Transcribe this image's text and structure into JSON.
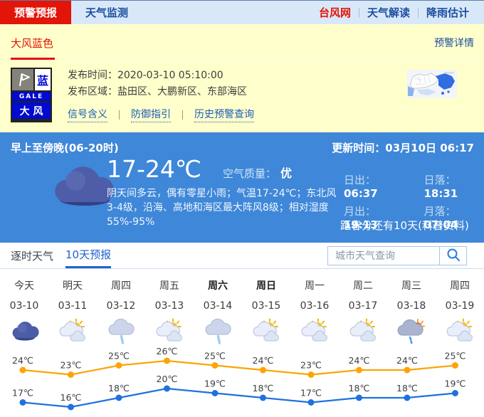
{
  "nav": {
    "tabs": [
      {
        "label": "预警预报",
        "active": true
      },
      {
        "label": "天气监测",
        "active": false
      }
    ],
    "links": [
      "台风网",
      "天气解读",
      "降雨估计"
    ]
  },
  "warning": {
    "title": "大风蓝色",
    "details_link": "预警详情",
    "icon": {
      "badge_char": "蓝",
      "gale_text": "GALE",
      "name": "大 风"
    },
    "publish_time_label": "发布时间：",
    "publish_time": "2020-03-10 05:10:00",
    "area_label": "发布区域：",
    "area": "盐田区、大鹏新区、东部海区",
    "links": [
      "信号含义",
      "防御指引",
      "历史预警查询"
    ]
  },
  "current": {
    "period": "早上至傍晚(06-20时)",
    "update_label": "更新时间：",
    "update_time": "03月10日 06:17",
    "temp_range": "17-24℃",
    "air_label": "空气质量：",
    "air_value": "优",
    "description": "阴天间多云，偶有零星小雨；气温17-24℃；东北风3-4级，沿海、高地和海区最大阵风8级；相对湿度55%-95%",
    "astro": [
      {
        "label": "日出：",
        "value": "06:37"
      },
      {
        "label": "日落：",
        "value": "18:31"
      },
      {
        "label": "月出：",
        "value": "19:13"
      },
      {
        "label": "月落：",
        "value": "07:04"
      }
    ],
    "note": "距春分还有10天(科普资料)"
  },
  "forecast": {
    "tabs": [
      {
        "label": "逐时天气",
        "active": false
      },
      {
        "label": "10天预报",
        "active": true
      }
    ],
    "search_placeholder": "城市天气查询",
    "days": [
      {
        "name": "今天",
        "date": "03-10",
        "icon": "overcast",
        "bold": false
      },
      {
        "name": "明天",
        "date": "03-11",
        "icon": "cloudy",
        "bold": false
      },
      {
        "name": "周四",
        "date": "03-12",
        "icon": "rain",
        "bold": false
      },
      {
        "name": "周五",
        "date": "03-13",
        "icon": "cloudy",
        "bold": false
      },
      {
        "name": "周六",
        "date": "03-14",
        "icon": "rain",
        "bold": true
      },
      {
        "name": "周日",
        "date": "03-15",
        "icon": "cloudy",
        "bold": true
      },
      {
        "name": "周一",
        "date": "03-16",
        "icon": "cloudy",
        "bold": false
      },
      {
        "name": "周二",
        "date": "03-17",
        "icon": "cloudy",
        "bold": false
      },
      {
        "name": "周三",
        "date": "03-18",
        "icon": "shower",
        "bold": false
      },
      {
        "name": "周四",
        "date": "03-19",
        "icon": "cloudy",
        "bold": false
      }
    ]
  },
  "chart_data": {
    "type": "line",
    "categories": [
      "03-10",
      "03-11",
      "03-12",
      "03-13",
      "03-14",
      "03-15",
      "03-16",
      "03-17",
      "03-18",
      "03-19"
    ],
    "series": [
      {
        "name": "high-temp",
        "color": "#fca404",
        "values": [
          24,
          23,
          25,
          26,
          25,
          24,
          23,
          24,
          24,
          25
        ]
      },
      {
        "name": "low-temp",
        "color": "#1f71dd",
        "values": [
          17,
          16,
          18,
          20,
          19,
          18,
          17,
          18,
          18,
          19
        ]
      }
    ],
    "unit": "℃",
    "ylim": [
      15,
      27
    ],
    "grid": false,
    "legend": "none"
  },
  "colors": {
    "accent_red": "#e31408",
    "panel_yellow": "#ffffcc",
    "panel_blue": "#3f87d8",
    "link_blue": "#1c4fa0",
    "warning_flag_blue": "#000ad0"
  }
}
